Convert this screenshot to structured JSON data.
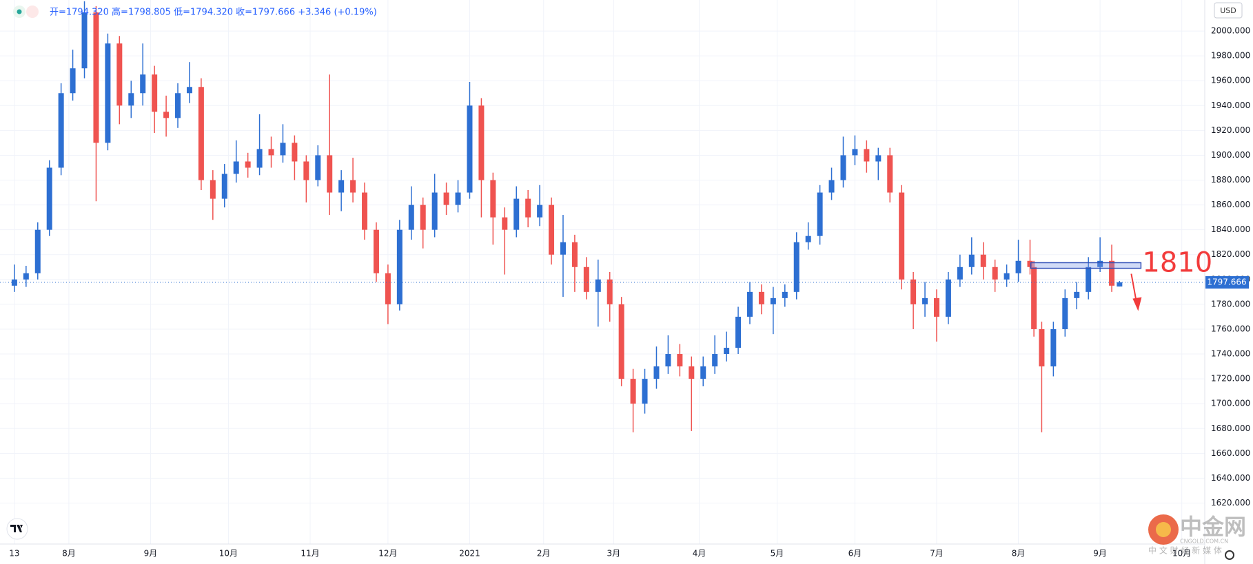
{
  "chart_data": {
    "type": "candlestick",
    "ohlc_text": "开=1794.320 高=1798.805 低=1794.320 收=1797.666 +3.346 (+0.19%)",
    "currency": "USD",
    "up_color": "#2d6fd2",
    "down_color": "#ef5350",
    "grid": true,
    "x": [
      0,
      3,
      6,
      9,
      12,
      15,
      18,
      21,
      24,
      27,
      30,
      33,
      36,
      39,
      42,
      45,
      48,
      51,
      54,
      57,
      60,
      63,
      66,
      69,
      72,
      75,
      78,
      81,
      84,
      87,
      90,
      93,
      96,
      99,
      102,
      105,
      108,
      111,
      114,
      117,
      120,
      123,
      126,
      129,
      132,
      135,
      138,
      141,
      144,
      147,
      150,
      153,
      156,
      159,
      162,
      165,
      168,
      171,
      174,
      177,
      180,
      183,
      186,
      189,
      192,
      195,
      198,
      201,
      204,
      207,
      210,
      213,
      216,
      219,
      222,
      225,
      228,
      231,
      234,
      237,
      240,
      243,
      246,
      249,
      252,
      255,
      258,
      261,
      262,
      264,
      267,
      270,
      273,
      276,
      279,
      282,
      284
    ],
    "open": [
      1795,
      1800,
      1805,
      1840,
      1890,
      1950,
      1970,
      2015,
      1910,
      1990,
      1940,
      1950,
      1965,
      1935,
      1930,
      1950,
      1955,
      1880,
      1865,
      1885,
      1895,
      1890,
      1905,
      1900,
      1910,
      1895,
      1880,
      1900,
      1870,
      1880,
      1870,
      1840,
      1805,
      1780,
      1840,
      1860,
      1840,
      1870,
      1860,
      1870,
      1940,
      1880,
      1850,
      1840,
      1865,
      1850,
      1860,
      1820,
      1830,
      1810,
      1790,
      1800,
      1780,
      1720,
      1700,
      1720,
      1730,
      1740,
      1730,
      1720,
      1730,
      1740,
      1745,
      1770,
      1790,
      1780,
      1785,
      1790,
      1830,
      1835,
      1870,
      1880,
      1900,
      1905,
      1895,
      1900,
      1870,
      1800,
      1780,
      1785,
      1770,
      1800,
      1810,
      1820,
      1810,
      1800,
      1805,
      1815,
      1810,
      1760,
      1730,
      1760,
      1785,
      1790,
      1810,
      1815,
      1794.32
    ],
    "high": [
      1812,
      1811,
      1846,
      1896,
      1958,
      1985,
      2024,
      2020,
      1998,
      1996,
      1960,
      1990,
      1972,
      1948,
      1958,
      1975,
      1962,
      1888,
      1893,
      1912,
      1902,
      1933,
      1915,
      1925,
      1916,
      1900,
      1908,
      1965,
      1888,
      1898,
      1878,
      1846,
      1812,
      1848,
      1875,
      1866,
      1885,
      1878,
      1880,
      1959,
      1946,
      1886,
      1858,
      1875,
      1872,
      1876,
      1866,
      1852,
      1836,
      1818,
      1816,
      1806,
      1786,
      1728,
      1728,
      1746,
      1755,
      1748,
      1738,
      1738,
      1755,
      1758,
      1778,
      1798,
      1796,
      1794,
      1796,
      1838,
      1846,
      1876,
      1890,
      1915,
      1916,
      1912,
      1906,
      1906,
      1876,
      1806,
      1798,
      1792,
      1806,
      1820,
      1834,
      1830,
      1816,
      1812,
      1832,
      1832,
      1815,
      1766,
      1766,
      1792,
      1798,
      1818,
      1834,
      1828,
      1798.805
    ],
    "low": [
      1790,
      1794,
      1800,
      1835,
      1884,
      1944,
      1962,
      1863,
      1904,
      1925,
      1930,
      1940,
      1918,
      1915,
      1922,
      1942,
      1872,
      1848,
      1858,
      1878,
      1882,
      1884,
      1890,
      1894,
      1880,
      1862,
      1875,
      1852,
      1855,
      1862,
      1832,
      1798,
      1764,
      1775,
      1832,
      1825,
      1834,
      1852,
      1854,
      1865,
      1850,
      1828,
      1804,
      1834,
      1842,
      1843,
      1812,
      1786,
      1790,
      1784,
      1762,
      1766,
      1714,
      1677,
      1692,
      1712,
      1724,
      1722,
      1678,
      1714,
      1724,
      1734,
      1740,
      1764,
      1772,
      1756,
      1778,
      1784,
      1824,
      1828,
      1864,
      1874,
      1892,
      1886,
      1880,
      1862,
      1792,
      1760,
      1770,
      1750,
      1764,
      1794,
      1804,
      1800,
      1790,
      1794,
      1798,
      1804,
      1754,
      1677,
      1722,
      1754,
      1776,
      1784,
      1806,
      1790,
      1794.32
    ],
    "close": [
      1800,
      1805,
      1840,
      1890,
      1950,
      1970,
      2015,
      1910,
      1990,
      1940,
      1950,
      1965,
      1935,
      1930,
      1950,
      1955,
      1880,
      1865,
      1885,
      1895,
      1890,
      1905,
      1900,
      1910,
      1895,
      1880,
      1900,
      1870,
      1880,
      1870,
      1840,
      1805,
      1780,
      1840,
      1860,
      1840,
      1870,
      1860,
      1870,
      1940,
      1880,
      1850,
      1840,
      1865,
      1850,
      1860,
      1820,
      1830,
      1810,
      1790,
      1800,
      1780,
      1720,
      1700,
      1720,
      1730,
      1740,
      1730,
      1720,
      1730,
      1740,
      1745,
      1770,
      1790,
      1780,
      1785,
      1790,
      1830,
      1835,
      1870,
      1880,
      1900,
      1905,
      1895,
      1900,
      1870,
      1800,
      1780,
      1785,
      1770,
      1800,
      1810,
      1820,
      1810,
      1800,
      1805,
      1815,
      1810,
      1760,
      1730,
      1760,
      1785,
      1790,
      1810,
      1815,
      1795,
      1797.666
    ],
    "last_price": 1797.666,
    "xlim": [
      -3.7,
      305.9
    ],
    "ylim": [
      1587,
      2025
    ],
    "xticks": [
      {
        "value": 0,
        "label": "13"
      },
      {
        "value": 14,
        "label": "8月"
      },
      {
        "value": 35,
        "label": "9月"
      },
      {
        "value": 55,
        "label": "10月"
      },
      {
        "value": 76,
        "label": "11月"
      },
      {
        "value": 96,
        "label": "12月"
      },
      {
        "value": 117,
        "label": "2021"
      },
      {
        "value": 136,
        "label": "2月"
      },
      {
        "value": 154,
        "label": "3月"
      },
      {
        "value": 176,
        "label": "4月"
      },
      {
        "value": 196,
        "label": "5月"
      },
      {
        "value": 216,
        "label": "6月"
      },
      {
        "value": 237,
        "label": "7月"
      },
      {
        "value": 258,
        "label": "8月"
      },
      {
        "value": 279,
        "label": "9月"
      },
      {
        "value": 300,
        "label": "10月"
      }
    ],
    "yticks": [
      {
        "value": 1620,
        "label": "1620.000"
      },
      {
        "value": 1640,
        "label": "1640.000"
      },
      {
        "value": 1660,
        "label": "1660.000"
      },
      {
        "value": 1680,
        "label": "1680.000"
      },
      {
        "value": 1700,
        "label": "1700.000"
      },
      {
        "value": 1720,
        "label": "1720.000"
      },
      {
        "value": 1740,
        "label": "1740.000"
      },
      {
        "value": 1760,
        "label": "1760.000"
      },
      {
        "value": 1780,
        "label": "1780.000"
      },
      {
        "value": 1800,
        "label": "1800.000"
      },
      {
        "value": 1820,
        "label": "1820.000"
      },
      {
        "value": 1840,
        "label": "1840.000"
      },
      {
        "value": 1860,
        "label": "1860.000"
      },
      {
        "value": 1880,
        "label": "1880.000"
      },
      {
        "value": 1900,
        "label": "1900.000"
      },
      {
        "value": 1920,
        "label": "1920.000"
      },
      {
        "value": 1940,
        "label": "1940.000"
      },
      {
        "value": 1960,
        "label": "1960.000"
      },
      {
        "value": 1980,
        "label": "1980.000"
      },
      {
        "value": 2000,
        "label": "2000.000"
      }
    ],
    "annotation": {
      "label": "1810",
      "color": "#f23b3b",
      "x_range": [
        261.2,
        289.5
      ],
      "y_range": [
        1809,
        1813.5
      ]
    }
  },
  "watermark": {
    "brand": "中金网",
    "domain": "CNGOLD.COM.CN",
    "slogan": "中 文 财 经 新 媒 体"
  }
}
